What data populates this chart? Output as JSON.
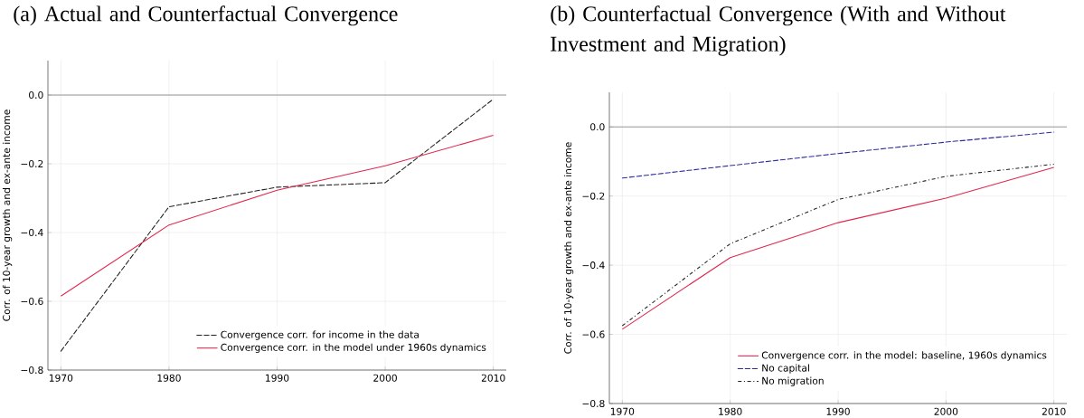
{
  "chart_data": [
    {
      "type": "line",
      "title": "(a) Actual and Counterfactual Convergence",
      "ylabel": "Corr. of 10-year growth and ex-ante income",
      "x": [
        1970,
        1980,
        1990,
        2000,
        2010
      ],
      "xlim": [
        1968.8,
        2011.2
      ],
      "ylim": [
        -0.8,
        0.1
      ],
      "xticks": [
        1970,
        1980,
        1990,
        2000,
        2010
      ],
      "yticks": [
        {
          "value": -0.8,
          "label": "−0.8"
        },
        {
          "value": -0.6,
          "label": "−0.6"
        },
        {
          "value": -0.4,
          "label": "−0.4"
        },
        {
          "value": -0.2,
          "label": "−0.2"
        },
        {
          "value": 0,
          "label": "0.0"
        }
      ],
      "grid": true,
      "legend": "bottom right",
      "ref_lines": [
        {
          "axis": "y",
          "value": 0,
          "color": "#808080"
        }
      ],
      "series": [
        {
          "name": "Convergence corr. for income in the data",
          "color": "#222222",
          "line_style": "dashed",
          "values": [
            -0.745,
            -0.325,
            -0.268,
            -0.255,
            -0.012
          ]
        },
        {
          "name": "Convergence corr. in the model under 1960s dynamics",
          "color": "#e0284f",
          "line_style": "solid",
          "values": [
            -0.585,
            -0.378,
            -0.277,
            -0.206,
            -0.117
          ]
        }
      ]
    },
    {
      "type": "line",
      "title": "(b) Counterfactual Convergence (With and Without Investment and Migration)",
      "ylabel": "Corr. of 10-year growth and ex-ante income",
      "x": [
        1970,
        1980,
        1990,
        2000,
        2010
      ],
      "xlim": [
        1968.8,
        2011.2
      ],
      "ylim": [
        -0.8,
        0.1
      ],
      "xticks": [
        1970,
        1980,
        1990,
        2000,
        2010
      ],
      "yticks": [
        {
          "value": -0.8,
          "label": "−0.8"
        },
        {
          "value": -0.6,
          "label": "−0.6"
        },
        {
          "value": -0.4,
          "label": "−0.4"
        },
        {
          "value": -0.2,
          "label": "−0.2"
        },
        {
          "value": 0,
          "label": "0.0"
        }
      ],
      "grid": true,
      "legend": "bottom right",
      "ref_lines": [
        {
          "axis": "y",
          "value": 0,
          "color": "#808080"
        }
      ],
      "series": [
        {
          "name": "Convergence corr. in the model: baseline, 1960s dynamics",
          "color": "#e0284f",
          "line_style": "solid",
          "values": [
            -0.585,
            -0.378,
            -0.277,
            -0.206,
            -0.117
          ]
        },
        {
          "name": "No capital",
          "color": "#2b2b9e",
          "line_style": "dashed",
          "values": [
            -0.148,
            -0.112,
            -0.077,
            -0.044,
            -0.015
          ]
        },
        {
          "name": "No migration",
          "color": "#222222",
          "line_style": "dashdot",
          "values": [
            -0.575,
            -0.338,
            -0.21,
            -0.143,
            -0.108
          ]
        }
      ]
    }
  ]
}
